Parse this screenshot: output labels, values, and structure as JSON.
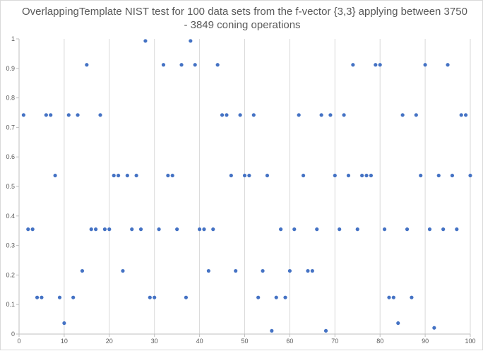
{
  "chart_data": {
    "type": "scatter",
    "title_lines": [
      "OverlappingTemplate NIST test for 100 data sets from the f-vector {3,3} applying between 3750",
      "- 3849 coning operations"
    ],
    "xlabel": "",
    "ylabel": "",
    "xlim": [
      0,
      100
    ],
    "ylim": [
      0,
      1
    ],
    "x_ticks": [
      "0",
      "10",
      "20",
      "30",
      "40",
      "50",
      "60",
      "70",
      "80",
      "90",
      "100"
    ],
    "y_ticks": [
      "0",
      "0.1",
      "0.2",
      "0.3",
      "0.4",
      "0.5",
      "0.6",
      "0.7",
      "0.8",
      "0.9",
      "1"
    ],
    "grid": "vertical",
    "legend": "none",
    "marker_color": "#4472c4",
    "points": [
      {
        "x": 1,
        "y": 0.742
      },
      {
        "x": 2,
        "y": 0.355
      },
      {
        "x": 3,
        "y": 0.355
      },
      {
        "x": 4,
        "y": 0.124
      },
      {
        "x": 5,
        "y": 0.124
      },
      {
        "x": 6,
        "y": 0.742
      },
      {
        "x": 7,
        "y": 0.742
      },
      {
        "x": 8,
        "y": 0.537
      },
      {
        "x": 9,
        "y": 0.124
      },
      {
        "x": 10,
        "y": 0.037
      },
      {
        "x": 11,
        "y": 0.742
      },
      {
        "x": 12,
        "y": 0.124
      },
      {
        "x": 13,
        "y": 0.742
      },
      {
        "x": 14,
        "y": 0.214
      },
      {
        "x": 15,
        "y": 0.912
      },
      {
        "x": 16,
        "y": 0.355
      },
      {
        "x": 17,
        "y": 0.355
      },
      {
        "x": 18,
        "y": 0.742
      },
      {
        "x": 19,
        "y": 0.355
      },
      {
        "x": 20,
        "y": 0.355
      },
      {
        "x": 21,
        "y": 0.537
      },
      {
        "x": 22,
        "y": 0.537
      },
      {
        "x": 23,
        "y": 0.214
      },
      {
        "x": 24,
        "y": 0.537
      },
      {
        "x": 25,
        "y": 0.355
      },
      {
        "x": 26,
        "y": 0.537
      },
      {
        "x": 27,
        "y": 0.355
      },
      {
        "x": 28,
        "y": 0.993
      },
      {
        "x": 29,
        "y": 0.124
      },
      {
        "x": 30,
        "y": 0.124
      },
      {
        "x": 31,
        "y": 0.355
      },
      {
        "x": 32,
        "y": 0.912
      },
      {
        "x": 33,
        "y": 0.537
      },
      {
        "x": 34,
        "y": 0.537
      },
      {
        "x": 35,
        "y": 0.355
      },
      {
        "x": 36,
        "y": 0.912
      },
      {
        "x": 37,
        "y": 0.124
      },
      {
        "x": 38,
        "y": 0.993
      },
      {
        "x": 39,
        "y": 0.912
      },
      {
        "x": 40,
        "y": 0.355
      },
      {
        "x": 41,
        "y": 0.355
      },
      {
        "x": 42,
        "y": 0.214
      },
      {
        "x": 43,
        "y": 0.355
      },
      {
        "x": 44,
        "y": 0.912
      },
      {
        "x": 45,
        "y": 0.742
      },
      {
        "x": 46,
        "y": 0.742
      },
      {
        "x": 47,
        "y": 0.537
      },
      {
        "x": 48,
        "y": 0.214
      },
      {
        "x": 49,
        "y": 0.742
      },
      {
        "x": 50,
        "y": 0.537
      },
      {
        "x": 51,
        "y": 0.537
      },
      {
        "x": 52,
        "y": 0.742
      },
      {
        "x": 53,
        "y": 0.124
      },
      {
        "x": 54,
        "y": 0.214
      },
      {
        "x": 55,
        "y": 0.537
      },
      {
        "x": 56,
        "y": 0.011
      },
      {
        "x": 57,
        "y": 0.124
      },
      {
        "x": 58,
        "y": 0.355
      },
      {
        "x": 59,
        "y": 0.124
      },
      {
        "x": 60,
        "y": 0.214
      },
      {
        "x": 61,
        "y": 0.355
      },
      {
        "x": 62,
        "y": 0.742
      },
      {
        "x": 63,
        "y": 0.537
      },
      {
        "x": 64,
        "y": 0.214
      },
      {
        "x": 65,
        "y": 0.214
      },
      {
        "x": 66,
        "y": 0.355
      },
      {
        "x": 67,
        "y": 0.742
      },
      {
        "x": 68,
        "y": 0.011
      },
      {
        "x": 69,
        "y": 0.742
      },
      {
        "x": 70,
        "y": 0.537
      },
      {
        "x": 71,
        "y": 0.355
      },
      {
        "x": 72,
        "y": 0.742
      },
      {
        "x": 73,
        "y": 0.537
      },
      {
        "x": 74,
        "y": 0.912
      },
      {
        "x": 75,
        "y": 0.355
      },
      {
        "x": 76,
        "y": 0.537
      },
      {
        "x": 77,
        "y": 0.537
      },
      {
        "x": 78,
        "y": 0.537
      },
      {
        "x": 79,
        "y": 0.912
      },
      {
        "x": 80,
        "y": 0.912
      },
      {
        "x": 81,
        "y": 0.355
      },
      {
        "x": 82,
        "y": 0.124
      },
      {
        "x": 83,
        "y": 0.124
      },
      {
        "x": 84,
        "y": 0.037
      },
      {
        "x": 85,
        "y": 0.742
      },
      {
        "x": 86,
        "y": 0.355
      },
      {
        "x": 87,
        "y": 0.124
      },
      {
        "x": 88,
        "y": 0.742
      },
      {
        "x": 89,
        "y": 0.537
      },
      {
        "x": 90,
        "y": 0.912
      },
      {
        "x": 91,
        "y": 0.355
      },
      {
        "x": 92,
        "y": 0.021
      },
      {
        "x": 93,
        "y": 0.537
      },
      {
        "x": 94,
        "y": 0.355
      },
      {
        "x": 95,
        "y": 0.912
      },
      {
        "x": 96,
        "y": 0.537
      },
      {
        "x": 97,
        "y": 0.355
      },
      {
        "x": 98,
        "y": 0.742
      },
      {
        "x": 99,
        "y": 0.742
      },
      {
        "x": 100,
        "y": 0.537
      }
    ]
  }
}
